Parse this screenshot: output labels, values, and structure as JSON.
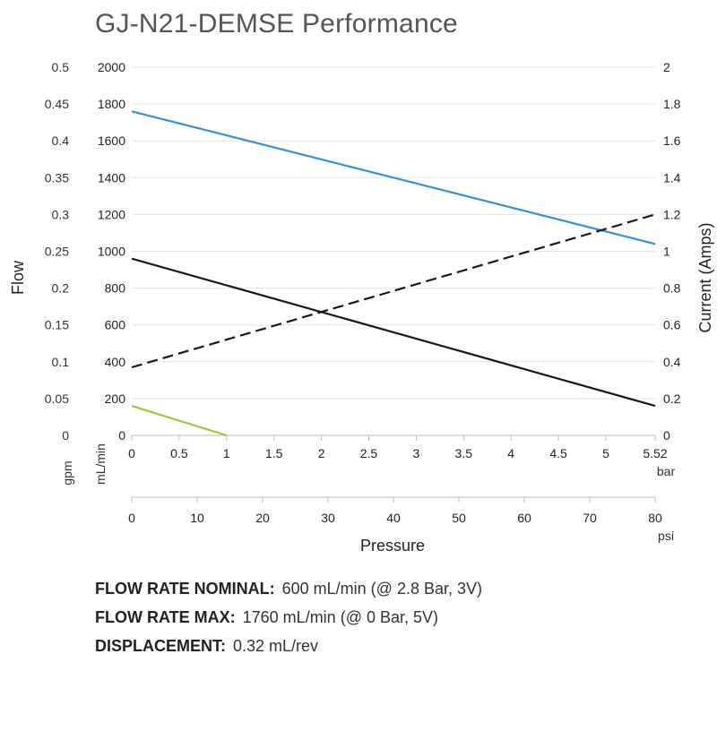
{
  "title": "GJ-N21-DEMSE Performance",
  "chart_data": {
    "type": "line",
    "title": "GJ-N21-DEMSE Performance",
    "xlabel": "Pressure",
    "ylabel_left": "Flow",
    "ylabel_right": "Current (Amps)",
    "left_units": [
      "gpm",
      "mL/min"
    ],
    "x_units": [
      "bar",
      "psi"
    ],
    "xlim_bar": [
      0,
      5.52
    ],
    "xlim_psi": [
      0,
      80
    ],
    "ylim_mlmin": [
      0,
      2000
    ],
    "ylim_gpm": [
      0,
      0.5
    ],
    "ylim_amps": [
      0,
      2
    ],
    "bar_ticks": [
      "0",
      "0.5",
      "1",
      "1.5",
      "2",
      "2.5",
      "3",
      "3.5",
      "4",
      "4.5",
      "5",
      "5.52"
    ],
    "psi_ticks": [
      "0",
      "10",
      "20",
      "30",
      "40",
      "50",
      "60",
      "70",
      "80"
    ],
    "mlmin_ticks": [
      "0",
      "200",
      "400",
      "600",
      "800",
      "1000",
      "1200",
      "1400",
      "1600",
      "1800",
      "2000"
    ],
    "gpm_ticks": [
      "0",
      "0.05",
      "0.1",
      "0.15",
      "0.2",
      "0.25",
      "0.3",
      "0.35",
      "0.4",
      "0.45",
      "0.5"
    ],
    "amps_ticks": [
      "0",
      "0.2",
      "0.4",
      "0.6",
      "0.8",
      "1",
      "1.2",
      "1.4",
      "1.6",
      "1.8",
      "2"
    ],
    "grid": true,
    "legend": "none",
    "series": [
      {
        "axis": "left",
        "style": "solid",
        "color": "#3a8fcf",
        "x": [
          0,
          5.52
        ],
        "y": [
          1760,
          1040
        ]
      },
      {
        "axis": "left",
        "style": "solid",
        "color": "#1a1a1a",
        "x": [
          0,
          5.52
        ],
        "y": [
          960,
          160
        ]
      },
      {
        "axis": "right",
        "style": "dashed",
        "color": "#1a1a1a",
        "x": [
          0,
          5.52
        ],
        "y": [
          0.37,
          1.2
        ]
      },
      {
        "axis": "left",
        "style": "solid",
        "color": "#9cc83c",
        "x": [
          0,
          1
        ],
        "y": [
          160,
          0
        ]
      }
    ]
  },
  "specs": [
    {
      "label": "FLOW RATE NOMINAL:",
      "value": "600 mL/min (@ 2.8 Bar, 3V)"
    },
    {
      "label": "FLOW RATE MAX:",
      "value": "1760 mL/min (@ 0 Bar, 5V)"
    },
    {
      "label": "DISPLACEMENT:",
      "value": "0.32 mL/rev"
    }
  ]
}
